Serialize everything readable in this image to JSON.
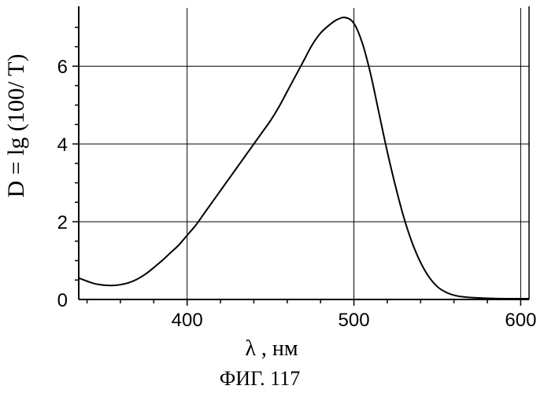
{
  "figure_caption": "ФИГ. 117",
  "chart_data": {
    "type": "line",
    "xlabel": "λ , нм",
    "ylabel": "D = lg (100/ T)",
    "xlim": [
      335,
      605
    ],
    "ylim": [
      0,
      7.5
    ],
    "x_ticks": [
      400,
      500,
      600
    ],
    "x_tick_labels": [
      "400",
      "500",
      "600"
    ],
    "y_ticks": [
      0,
      2,
      4,
      6
    ],
    "y_tick_labels": [
      "0",
      "2",
      "4",
      "6"
    ],
    "grid": true,
    "series": [
      {
        "color": "#000000",
        "x": [
          335,
          340,
          345,
          350,
          355,
          360,
          365,
          370,
          375,
          380,
          385,
          390,
          395,
          400,
          405,
          410,
          415,
          420,
          425,
          430,
          435,
          440,
          445,
          450,
          455,
          460,
          465,
          470,
          475,
          480,
          485,
          490,
          495,
          500,
          505,
          510,
          515,
          520,
          525,
          530,
          535,
          540,
          545,
          550,
          555,
          560,
          565,
          570,
          575,
          580,
          590,
          600,
          605
        ],
        "y": [
          0.55,
          0.47,
          0.4,
          0.37,
          0.36,
          0.38,
          0.43,
          0.52,
          0.65,
          0.82,
          1.0,
          1.2,
          1.4,
          1.65,
          1.9,
          2.2,
          2.5,
          2.8,
          3.1,
          3.4,
          3.7,
          4.0,
          4.3,
          4.6,
          4.95,
          5.35,
          5.75,
          6.15,
          6.55,
          6.85,
          7.05,
          7.2,
          7.25,
          7.1,
          6.6,
          5.8,
          4.8,
          3.8,
          2.9,
          2.1,
          1.45,
          0.95,
          0.58,
          0.33,
          0.19,
          0.11,
          0.07,
          0.05,
          0.04,
          0.03,
          0.02,
          0.02,
          0.02
        ]
      }
    ]
  }
}
